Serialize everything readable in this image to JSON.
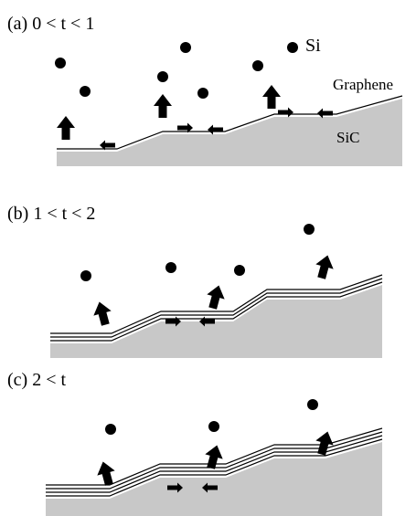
{
  "panels": [
    {
      "label": "(a) 0 < t < 1"
    },
    {
      "label": "(b) 1 < t < 2"
    },
    {
      "label": "(c) 2 < t"
    }
  ],
  "labels": {
    "si": "Si",
    "graphene": "Graphene",
    "sic": "SiC"
  }
}
